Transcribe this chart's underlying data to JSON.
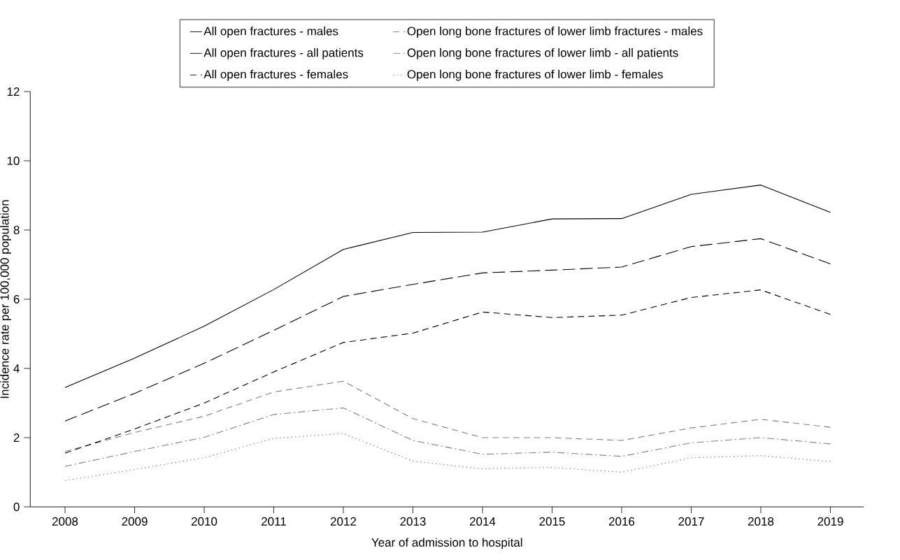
{
  "chart_data": {
    "type": "line",
    "xlabel": "Year of admission to hospital",
    "ylabel": "Incidence rate per 100,000 population",
    "categories": [
      "2008",
      "2009",
      "2010",
      "2011",
      "2012",
      "2013",
      "2014",
      "2015",
      "2016",
      "2017",
      "2018",
      "2019"
    ],
    "ylim": [
      0,
      12
    ],
    "yticks": [
      0,
      2,
      4,
      6,
      8,
      10,
      12
    ],
    "grid": false,
    "legend": "top",
    "marker": "none",
    "series": [
      {
        "name": "All open fractures - males",
        "color": "#000000",
        "line_style": "solid",
        "values": [
          3.45,
          4.3,
          5.22,
          6.28,
          7.44,
          7.93,
          7.94,
          8.32,
          8.33,
          9.03,
          9.3,
          8.51
        ]
      },
      {
        "name": "All open fractures - all patients",
        "color": "#000000",
        "line_style": "longdashed",
        "values": [
          2.48,
          3.28,
          4.15,
          5.1,
          6.08,
          6.43,
          6.76,
          6.84,
          6.93,
          7.52,
          7.75,
          7.02
        ]
      },
      {
        "name": "All open fractures - females",
        "color": "#000000",
        "line_style": "dashed",
        "values": [
          1.55,
          2.25,
          3.0,
          3.9,
          4.75,
          5.02,
          5.63,
          5.47,
          5.54,
          6.05,
          6.27,
          5.56
        ]
      },
      {
        "name": "Open long bone fractures of lower limb fractures - males",
        "color": "#808080",
        "line_style": "dashed",
        "values": [
          1.6,
          2.15,
          2.62,
          3.32,
          3.63,
          2.55,
          2.0,
          2.0,
          1.92,
          2.28,
          2.53,
          2.3
        ]
      },
      {
        "name": "Open long bone fractures of lower limb - all patients",
        "color": "#808080",
        "line_style": "dashdot",
        "values": [
          1.17,
          1.6,
          2.01,
          2.67,
          2.86,
          1.92,
          1.52,
          1.58,
          1.46,
          1.85,
          2.0,
          1.82
        ]
      },
      {
        "name": "Open long bone fractures of lower limb - females",
        "color": "#808080",
        "line_style": "dotted",
        "values": [
          0.76,
          1.08,
          1.42,
          1.98,
          2.12,
          1.32,
          1.1,
          1.14,
          1.0,
          1.42,
          1.48,
          1.31
        ]
      }
    ]
  }
}
